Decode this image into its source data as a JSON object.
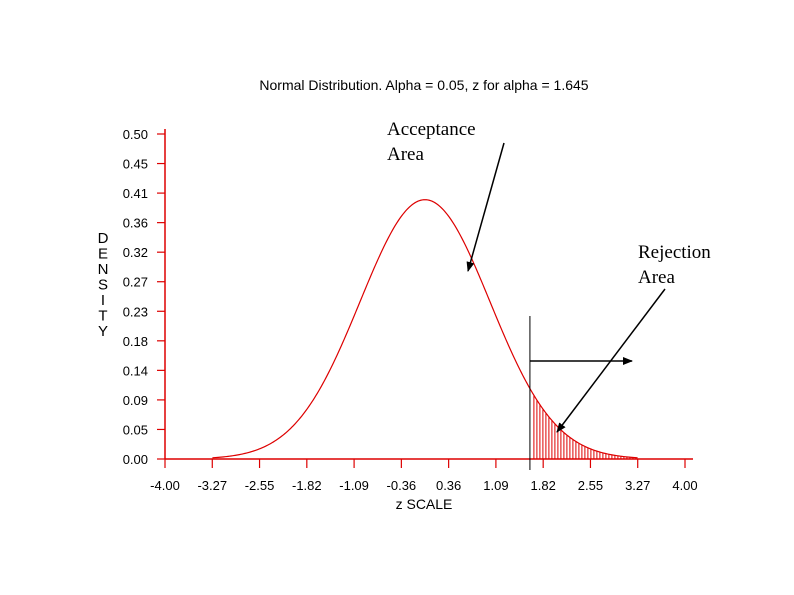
{
  "chart_data": {
    "type": "line",
    "title": "Normal Distribution. Alpha = 0.05, z for alpha = 1.645",
    "xlabel": "z SCALE",
    "ylabel": "DENSITY",
    "x_ticks": [
      "-4.00",
      "-3.27",
      "-2.55",
      "-1.82",
      "-1.09",
      "-0.36",
      "0.36",
      "1.09",
      "1.82",
      "2.55",
      "3.27",
      "4.00"
    ],
    "y_ticks": [
      "0.00",
      "0.05",
      "0.09",
      "0.14",
      "0.18",
      "0.23",
      "0.27",
      "0.32",
      "0.36",
      "0.41",
      "0.45",
      "0.50"
    ],
    "xlim": [
      -4.0,
      4.0
    ],
    "ylim": [
      0.0,
      0.5
    ],
    "critical_z": 1.645,
    "series": [
      {
        "x": [
          -3.27,
          -3.0,
          -2.75,
          -2.5,
          -2.25,
          -2.0,
          -1.75,
          -1.5,
          -1.25,
          -1.0,
          -0.75,
          -0.5,
          -0.25,
          0.0,
          0.25,
          0.5,
          0.75,
          1.0,
          1.25,
          1.5,
          1.75,
          2.0,
          2.25,
          2.5,
          2.75,
          3.0,
          3.27
        ],
        "y": [
          0.002,
          0.004,
          0.009,
          0.018,
          0.032,
          0.054,
          0.086,
          0.13,
          0.183,
          0.242,
          0.301,
          0.352,
          0.387,
          0.399,
          0.387,
          0.352,
          0.301,
          0.242,
          0.183,
          0.13,
          0.086,
          0.054,
          0.032,
          0.018,
          0.009,
          0.004,
          0.002
        ]
      }
    ],
    "colors": {
      "curve": "#dd0000",
      "axes": "#dd0000",
      "shading": "#dd0000",
      "arrows": "#000000"
    }
  },
  "annotations": {
    "acceptance_line1": "Acceptance",
    "acceptance_line2": "Area",
    "rejection_line1": "Rejection",
    "rejection_line2": "Area"
  }
}
